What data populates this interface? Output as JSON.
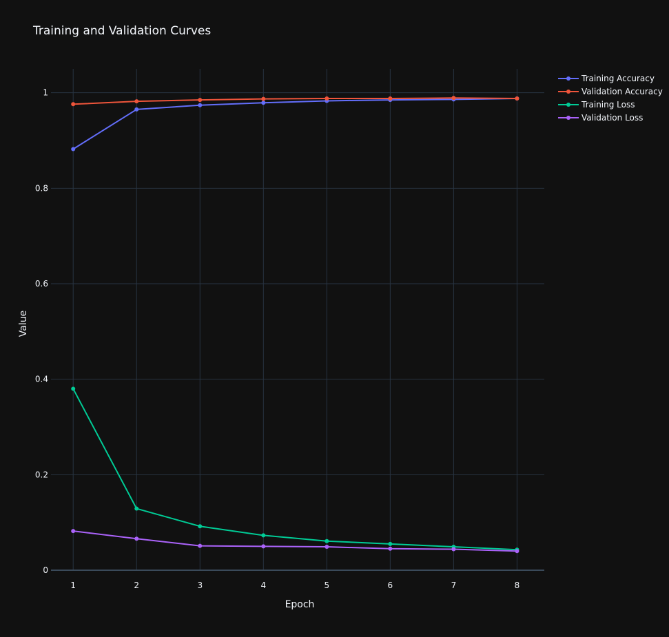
{
  "chart_data": {
    "type": "line",
    "title": "Training and Validation Curves",
    "xlabel": "Epoch",
    "ylabel": "Value",
    "x": [
      1,
      2,
      3,
      4,
      5,
      6,
      7,
      8
    ],
    "xlim": [
      0.65,
      8.43
    ],
    "ylim": [
      0,
      1.05
    ],
    "x_ticks": [
      1,
      2,
      3,
      4,
      5,
      6,
      7,
      8
    ],
    "y_ticks": [
      0,
      0.2,
      0.4,
      0.6,
      0.8,
      1
    ],
    "y_tick_labels": [
      "0",
      "0.2",
      "0.4",
      "0.6",
      "0.8",
      "1"
    ],
    "grid": true,
    "legend_position": "top-right",
    "series": [
      {
        "name": "Training Accuracy",
        "color": "#636efa",
        "values": [
          0.882,
          0.965,
          0.974,
          0.979,
          0.983,
          0.985,
          0.986,
          0.988
        ]
      },
      {
        "name": "Validation Accuracy",
        "color": "#ef553b",
        "values": [
          0.976,
          0.982,
          0.985,
          0.987,
          0.988,
          0.988,
          0.989,
          0.988
        ]
      },
      {
        "name": "Training Loss",
        "color": "#00cc96",
        "values": [
          0.38,
          0.129,
          0.092,
          0.073,
          0.061,
          0.055,
          0.049,
          0.043
        ]
      },
      {
        "name": "Validation Loss",
        "color": "#ab63fa",
        "values": [
          0.082,
          0.066,
          0.051,
          0.05,
          0.049,
          0.045,
          0.044,
          0.04
        ]
      }
    ]
  }
}
